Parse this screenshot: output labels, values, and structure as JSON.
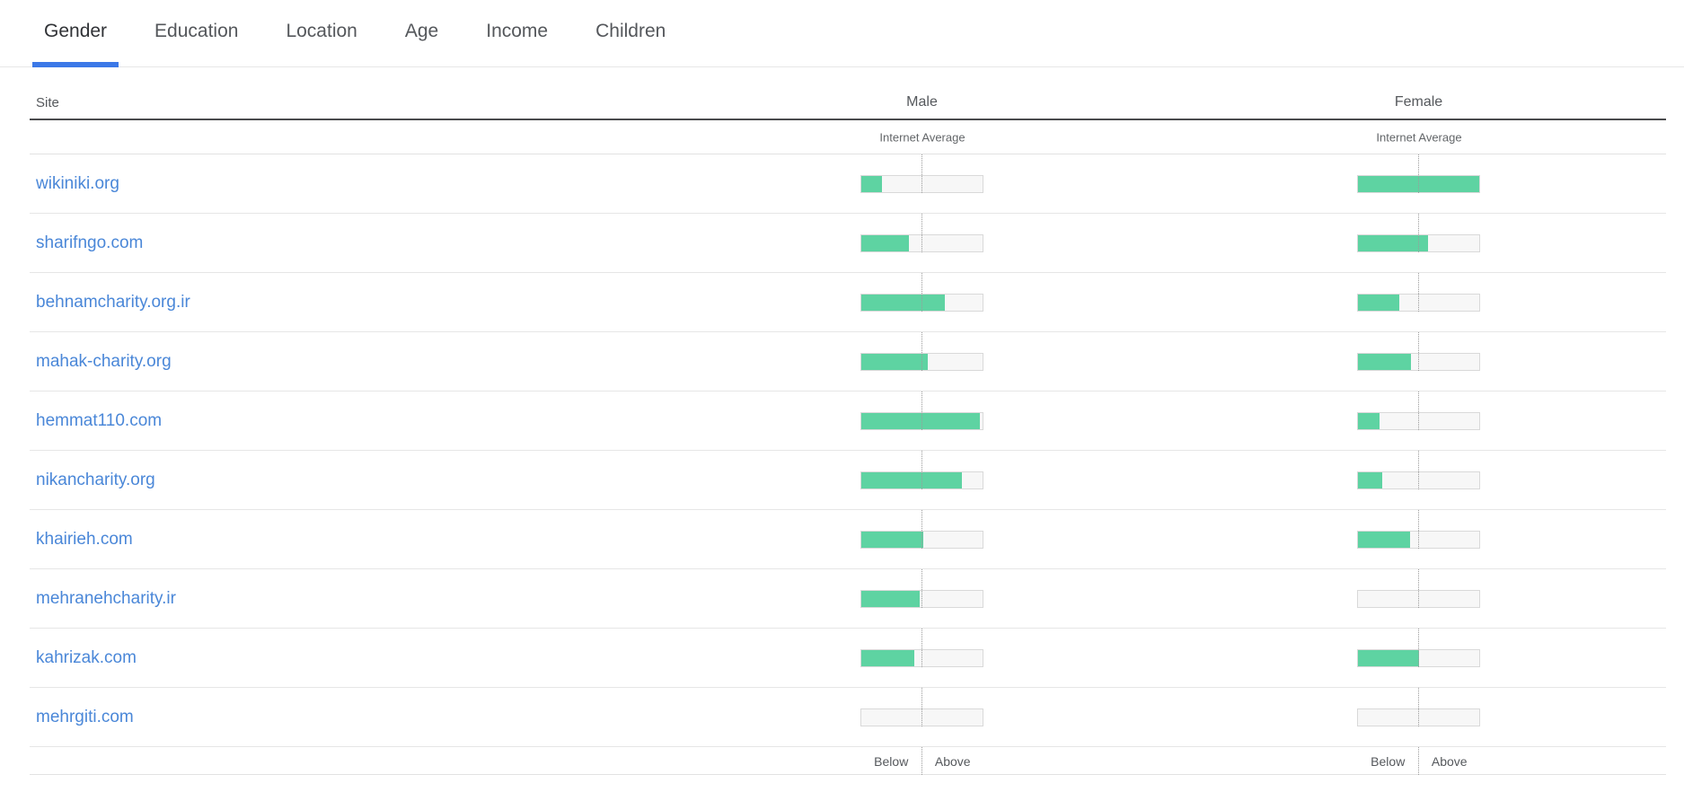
{
  "tabs": [
    {
      "label": "Gender",
      "active": true
    },
    {
      "label": "Education",
      "active": false
    },
    {
      "label": "Location",
      "active": false
    },
    {
      "label": "Age",
      "active": false
    },
    {
      "label": "Income",
      "active": false
    },
    {
      "label": "Children",
      "active": false
    }
  ],
  "table": {
    "site_header": "Site",
    "male_header": "Male",
    "female_header": "Female",
    "internet_average_label": "Internet Average",
    "below_label": "Below",
    "above_label": "Above",
    "rows": [
      {
        "site": "wikiniki.org",
        "male_pct": 17,
        "female_pct": 100
      },
      {
        "site": "sharifngo.com",
        "male_pct": 39,
        "female_pct": 58
      },
      {
        "site": "behnamcharity.org.ir",
        "male_pct": 69,
        "female_pct": 34
      },
      {
        "site": "mahak-charity.org",
        "male_pct": 55,
        "female_pct": 44
      },
      {
        "site": "hemmat110.com",
        "male_pct": 98,
        "female_pct": 18
      },
      {
        "site": "nikancharity.org",
        "male_pct": 83,
        "female_pct": 20
      },
      {
        "site": "khairieh.com",
        "male_pct": 51,
        "female_pct": 43
      },
      {
        "site": "mehranehcharity.ir",
        "male_pct": 48,
        "female_pct": 0
      },
      {
        "site": "kahrizak.com",
        "male_pct": 44,
        "female_pct": 50
      },
      {
        "site": "mehrgiti.com",
        "male_pct": 0,
        "female_pct": 0
      }
    ]
  },
  "colors": {
    "bar_fill": "#5ed3a2",
    "tab_underline": "#3b78e7",
    "site_link": "#4a87d8"
  }
}
